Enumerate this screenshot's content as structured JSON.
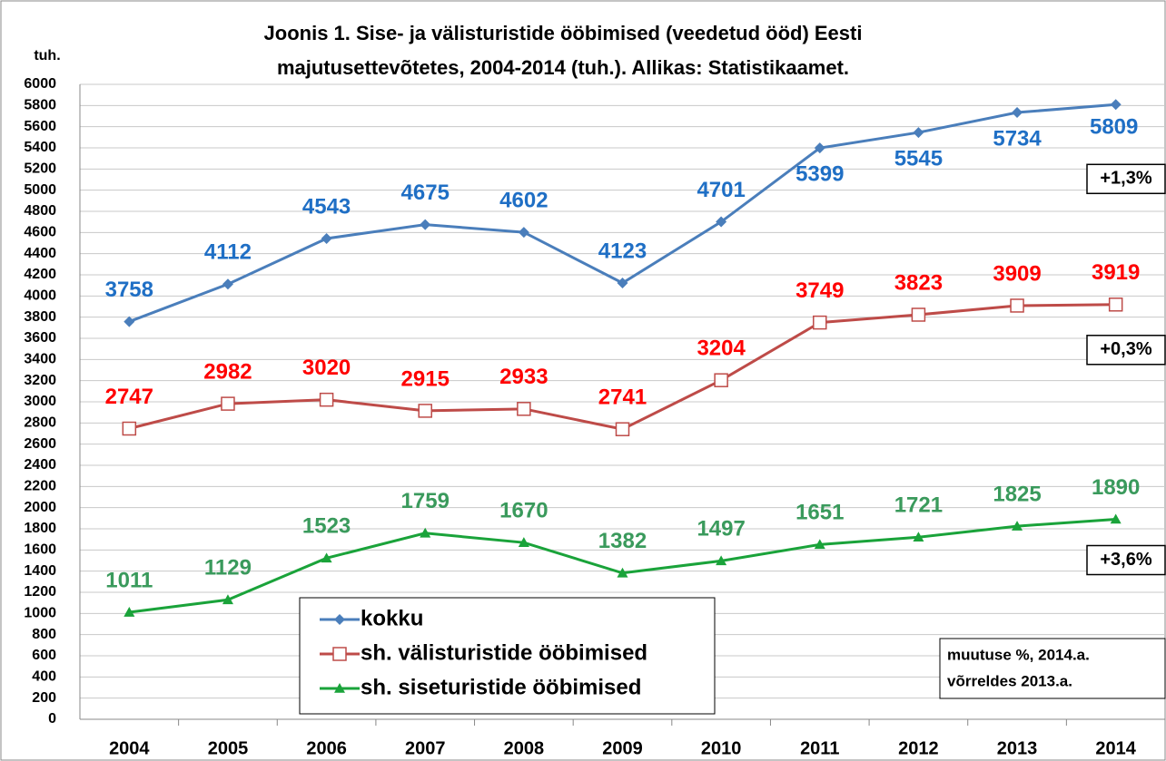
{
  "chart_data": {
    "type": "line",
    "title": [
      "Joonis 1. Sise- ja välisturistide ööbimised (veedetud ööd) Eesti",
      "majutusettevõtetes, 2004-2014 (tuh.).  Allikas: Statistikaamet."
    ],
    "y_axis_label": "tuh.",
    "categories": [
      "2004",
      "2005",
      "2006",
      "2007",
      "2008",
      "2009",
      "2010",
      "2011",
      "2012",
      "2013",
      "2014"
    ],
    "series": [
      {
        "name": "kokku",
        "color": "#4a7ebb",
        "label_color": "#1f6fc5",
        "marker": "diamond",
        "values": [
          3758,
          4112,
          4543,
          4675,
          4602,
          4123,
          4701,
          5399,
          5545,
          5734,
          5809
        ]
      },
      {
        "name": "sh. välisturistide ööbimised",
        "color": "#be4b48",
        "label_color": "#ff0000",
        "marker": "square",
        "values": [
          2747,
          2982,
          3020,
          2915,
          2933,
          2741,
          3204,
          3749,
          3823,
          3909,
          3919
        ]
      },
      {
        "name": "sh. siseturistide ööbimised",
        "color": "#1aa33a",
        "label_color": "#3a9a5c",
        "marker": "triangle",
        "values": [
          1011,
          1129,
          1523,
          1759,
          1670,
          1382,
          1497,
          1651,
          1721,
          1825,
          1890
        ]
      }
    ],
    "annotations": [
      "+1,3%",
      "+0,3%",
      "+3,6%"
    ],
    "note": [
      "muutuse %, 2014.a.",
      "võrreldes 2013.a."
    ],
    "ylim": [
      0,
      6000
    ],
    "yticks": [
      0,
      200,
      400,
      600,
      800,
      1000,
      1200,
      1400,
      1600,
      1800,
      2000,
      2200,
      2400,
      2600,
      2800,
      3000,
      3200,
      3400,
      3600,
      3800,
      4000,
      4200,
      4400,
      4600,
      4800,
      5000,
      5200,
      5400,
      5600,
      5800,
      6000
    ],
    "grid": true
  }
}
